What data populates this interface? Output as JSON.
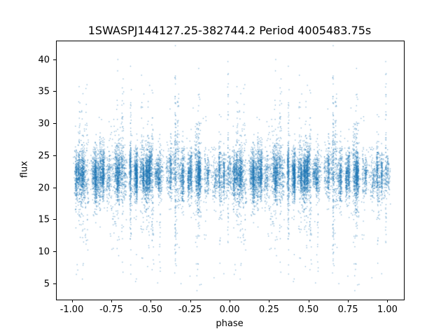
{
  "chart_data": {
    "type": "scatter",
    "title": "1SWASPJ144127.25-382744.2 Period 4005483.75s",
    "xlabel": "phase",
    "ylabel": "flux",
    "xlim": [
      -1.1,
      1.1
    ],
    "ylim": [
      2.6,
      42.9
    ],
    "xtick_values": [
      -1.0,
      -0.75,
      -0.5,
      -0.25,
      0.0,
      0.25,
      0.5,
      0.75,
      1.0
    ],
    "xtick_labels": [
      "-1.00",
      "-0.75",
      "-0.50",
      "-0.25",
      "0.00",
      "0.25",
      "0.50",
      "0.75",
      "1.00"
    ],
    "ytick_values": [
      5,
      10,
      15,
      20,
      25,
      30,
      35,
      40
    ],
    "ytick_labels": [
      "5",
      "10",
      "15",
      "20",
      "25",
      "30",
      "35",
      "40"
    ],
    "grid": false,
    "legend": null,
    "marker_color": "#1f77b4",
    "marker_alpha": 0.55,
    "marker_size_px": 1.3,
    "generator": {
      "description": "phase-folded light curve; dense band of flux ~17-27 centered near 22 with vertical spike columns reaching ~5 and ~41, duplicated over phase [-1,0] and [0,1]",
      "seed": 1337,
      "points": 9000,
      "mirrored": true,
      "clusters": 150,
      "mean_flux": 22.2,
      "band_sigma": [
        1.1,
        2.4
      ],
      "spike_fraction": 0.18,
      "spike_sigma": [
        3.5,
        8.0
      ],
      "low_outlier_range": [
        4.2,
        15.0
      ],
      "x_jitter": [
        0.0015,
        0.008
      ],
      "flux_min_observed": 4.3,
      "flux_max_observed": 41.2
    }
  }
}
